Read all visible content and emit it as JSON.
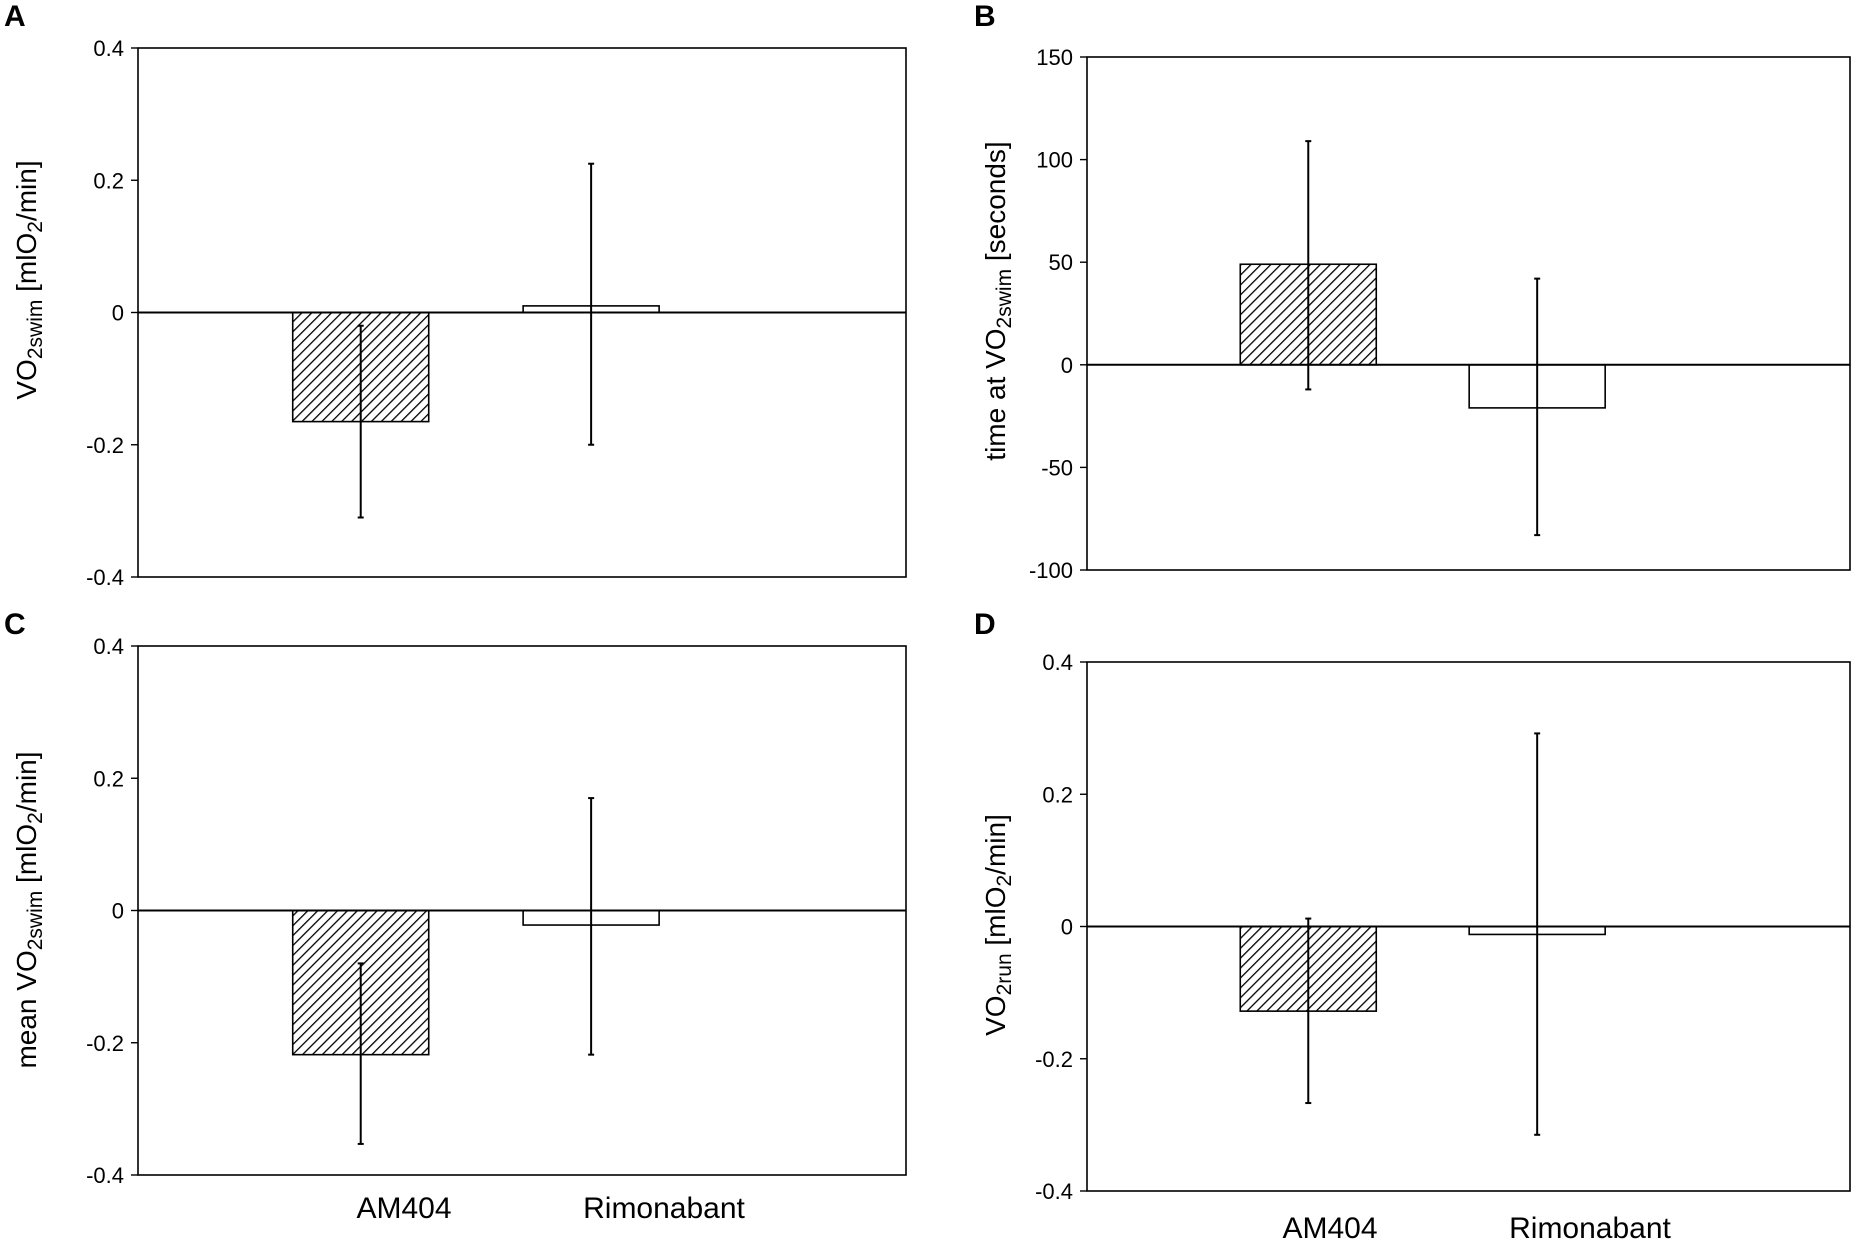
{
  "figure": {
    "categories": [
      "AM404",
      "Rimonabant"
    ]
  },
  "chart_data": [
    {
      "panel": "A",
      "type": "bar",
      "categories": [
        "AM404",
        "Rimonabant"
      ],
      "values": [
        -0.165,
        0.01
      ],
      "error_low": [
        -0.31,
        -0.2
      ],
      "error_high": [
        -0.02,
        0.225
      ],
      "ylim": [
        -0.4,
        0.4
      ],
      "yticks": [
        -0.4,
        -0.2,
        0,
        0.2,
        0.4
      ],
      "ytick_labels": [
        "-0.4",
        "-0.2",
        "0",
        "0.2",
        "0.4"
      ],
      "ylabel": {
        "main": "VO",
        "sub": "2swim",
        "rest": " [mlO",
        "sub2": "2",
        "end": "/min]"
      },
      "fills": [
        "hatched",
        "white"
      ]
    },
    {
      "panel": "B",
      "type": "bar",
      "categories": [
        "AM404",
        "Rimonabant"
      ],
      "values": [
        49,
        -21
      ],
      "error_low": [
        -12,
        -83
      ],
      "error_high": [
        109,
        42
      ],
      "ylim": [
        -100,
        150
      ],
      "yticks": [
        -100,
        -50,
        0,
        50,
        100,
        150
      ],
      "ytick_labels": [
        "-100",
        "-50",
        "0",
        "50",
        "100",
        "150"
      ],
      "ylabel": {
        "main": "time at VO",
        "sub": "2swim",
        "rest": " [seconds]",
        "sub2": "",
        "end": ""
      },
      "fills": [
        "hatched",
        "white"
      ]
    },
    {
      "panel": "C",
      "type": "bar",
      "categories": [
        "AM404",
        "Rimonabant"
      ],
      "values": [
        -0.218,
        -0.022
      ],
      "error_low": [
        -0.353,
        -0.218
      ],
      "error_high": [
        -0.08,
        0.17
      ],
      "ylim": [
        -0.4,
        0.4
      ],
      "yticks": [
        -0.4,
        -0.2,
        0,
        0.2,
        0.4
      ],
      "ytick_labels": [
        "-0.4",
        "-0.2",
        "0",
        "0.2",
        "0.4"
      ],
      "ylabel": {
        "main": "mean VO",
        "sub": "2swim",
        "rest": " [mlO",
        "sub2": "2",
        "end": "/min]"
      },
      "fills": [
        "hatched",
        "white"
      ]
    },
    {
      "panel": "D",
      "type": "bar",
      "categories": [
        "AM404",
        "Rimonabant"
      ],
      "values": [
        -0.128,
        -0.012
      ],
      "error_low": [
        -0.267,
        -0.315
      ],
      "error_high": [
        0.012,
        0.292
      ],
      "ylim": [
        -0.4,
        0.4
      ],
      "yticks": [
        -0.4,
        -0.2,
        0,
        0.2,
        0.4
      ],
      "ytick_labels": [
        "-0.4",
        "-0.2",
        "0",
        "0.2",
        "0.4"
      ],
      "ylabel": {
        "main": "VO",
        "sub": "2run",
        "rest": " [mlO",
        "sub2": "2",
        "end": "/min]"
      },
      "fills": [
        "hatched",
        "white"
      ]
    }
  ]
}
